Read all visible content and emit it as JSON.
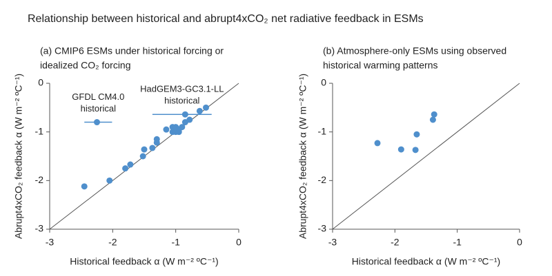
{
  "title": "Relationship between historical and abrupt4xCO₂ net radiative feedback in ESMs",
  "chart_data": [
    {
      "type": "scatter",
      "title": [
        "(a) CMIP6 ESMs under historical forcing or",
        "idealized CO₂ forcing"
      ],
      "xlabel": "Historical feedback α (W m⁻² ºC⁻¹)",
      "ylabel": "Abrupt4xCO₂ feedback α (W m⁻² ºC⁻¹)",
      "xlim": [
        -3,
        0
      ],
      "ylim": [
        -3,
        0
      ],
      "xticks": [
        -3,
        -2,
        -1,
        0
      ],
      "yticks": [
        0,
        -1,
        -2,
        -3
      ],
      "series": [
        {
          "color": "#4f8fcc",
          "x": [
            -2.45,
            -2.05,
            -1.8,
            -1.72,
            -1.52,
            -1.5,
            -1.37,
            -1.3,
            -1.3,
            -1.15,
            -1.05,
            -1.0,
            -1.05,
            -1.0,
            -0.95,
            -0.95,
            -0.9,
            -0.85,
            -0.78,
            -0.62,
            -0.52,
            -2.25,
            -0.85
          ],
          "values": [
            -2.12,
            -2.0,
            -1.75,
            -1.67,
            -1.5,
            -1.36,
            -1.33,
            -1.22,
            -1.15,
            -0.95,
            -0.9,
            -0.9,
            -1.0,
            -1.0,
            -0.95,
            -1.0,
            -0.9,
            -0.8,
            -0.75,
            -0.57,
            -0.5,
            -0.8,
            -0.64
          ]
        }
      ],
      "ranges": [
        {
          "y": -0.8,
          "xmin": -2.45,
          "xmax": -2.01,
          "label": [
            "GFDL CM4.0",
            "historical"
          ]
        },
        {
          "y": -0.64,
          "xmin": -1.37,
          "xmax": -0.43,
          "label": [
            "HadGEM3-GC3.1-LL",
            "historical"
          ]
        }
      ]
    },
    {
      "type": "scatter",
      "title": [
        "(b) Atmosphere-only ESMs using observed",
        "historical warming patterns"
      ],
      "xlabel": "Historical feedback α (W m⁻² ºC⁻¹)",
      "ylabel": "Abrupt4xCO₂ feedback α (W m⁻² ºC⁻¹)",
      "xlim": [
        -3,
        0
      ],
      "ylim": [
        -3,
        0
      ],
      "xticks": [
        -3,
        -2,
        -1,
        0
      ],
      "yticks": [
        0,
        -1,
        -2,
        -3
      ],
      "series": [
        {
          "color": "#4f8fcc",
          "x": [
            -2.28,
            -1.9,
            -1.67,
            -1.65,
            -1.39,
            -1.37
          ],
          "values": [
            -1.23,
            -1.36,
            -1.37,
            -1.05,
            -0.75,
            -0.64
          ]
        }
      ]
    }
  ]
}
